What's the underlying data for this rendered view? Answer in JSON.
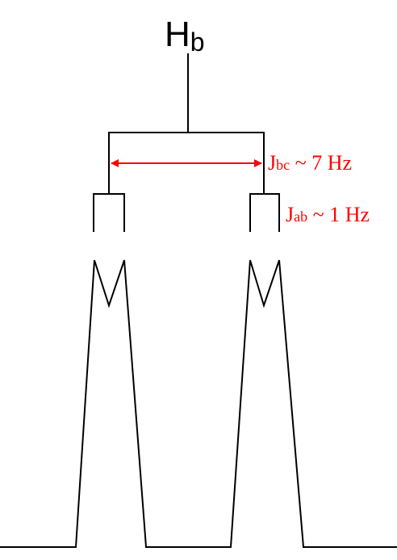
{
  "diagram": {
    "proton_label": {
      "main": "H",
      "subscript": "b"
    },
    "coupling_bc": {
      "prefix": "J",
      "subscript": "bc",
      "value_text": " ~ 7 Hz"
    },
    "coupling_ab": {
      "prefix": "J",
      "subscript": "ab",
      "value_text": " ~ 1 Hz"
    },
    "colors": {
      "line": "#000000",
      "annotation": "#ff0000"
    }
  }
}
